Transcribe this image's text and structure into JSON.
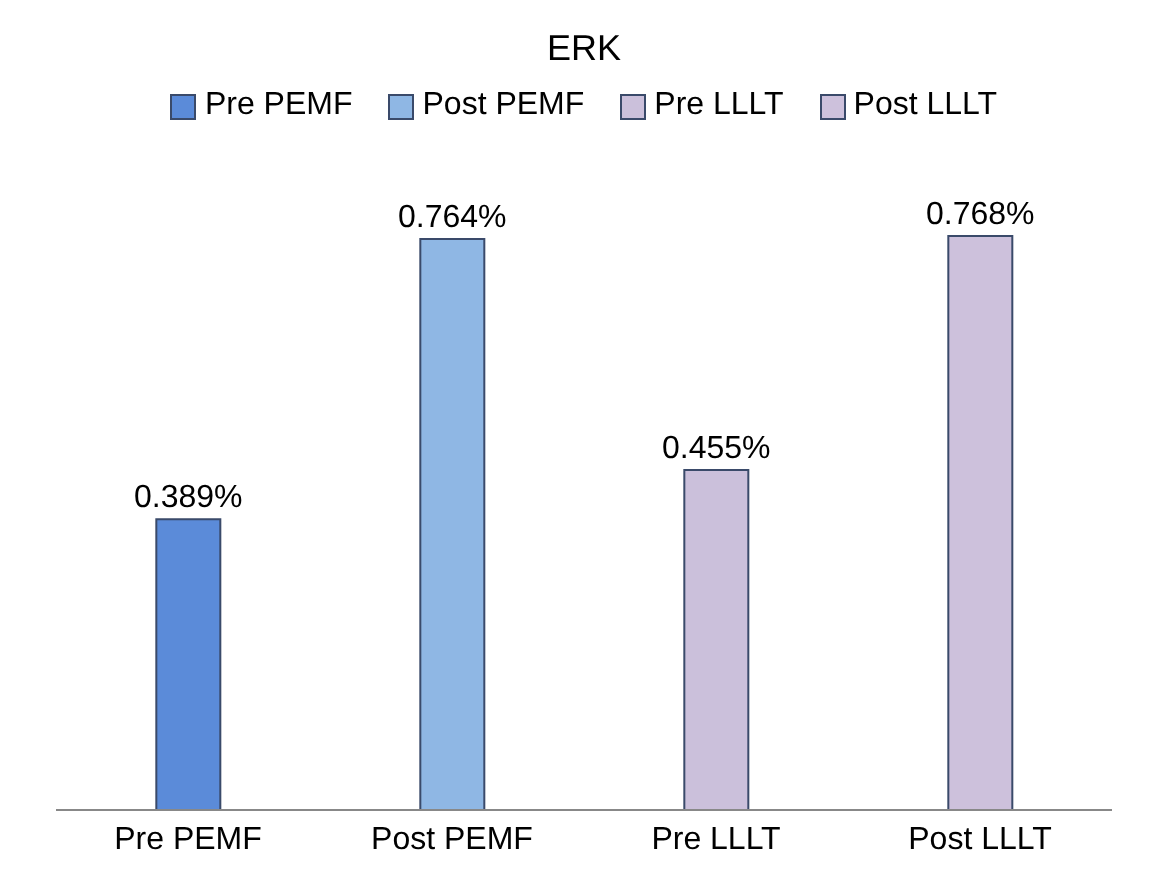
{
  "chart_data": {
    "type": "bar",
    "title": "ERK",
    "categories": [
      "Pre PEMF",
      "Post PEMF",
      "Pre LLLT",
      "Post LLLT"
    ],
    "legend": "top",
    "series": [
      {
        "name": "Pre PEMF",
        "color": "#5b8bd9",
        "values": [
          0.389,
          null,
          null,
          null
        ],
        "value_labels": [
          "0.389%",
          null,
          null,
          null
        ]
      },
      {
        "name": "Post PEMF",
        "color": "#8fb7e4",
        "values": [
          null,
          0.764,
          null,
          null
        ],
        "value_labels": [
          null,
          "0.764%",
          null,
          null
        ]
      },
      {
        "name": "Pre LLLT",
        "color": "#cbc0db",
        "values": [
          null,
          null,
          0.455,
          null
        ],
        "value_labels": [
          null,
          null,
          "0.455%",
          null
        ]
      },
      {
        "name": "Post LLLT",
        "color": "#cdc1dc",
        "values": [
          null,
          null,
          null,
          0.768
        ],
        "value_labels": [
          null,
          null,
          null,
          "0.768%"
        ]
      }
    ]
  }
}
